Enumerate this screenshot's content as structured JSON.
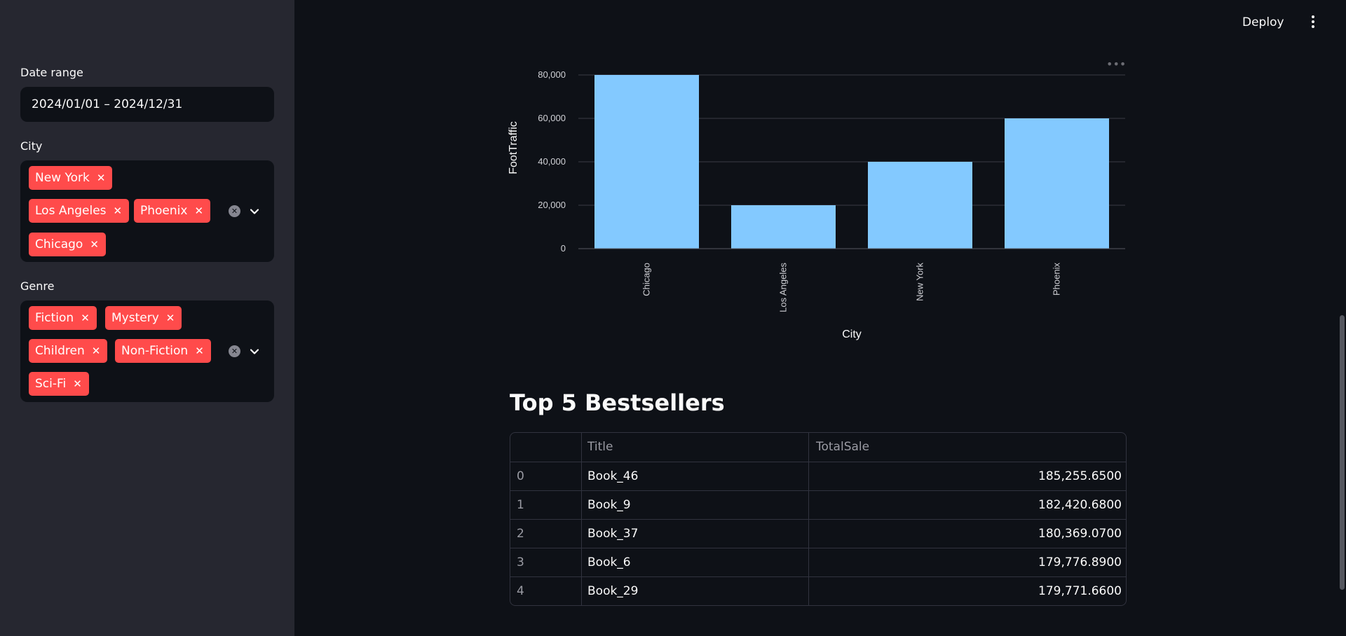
{
  "header": {
    "deploy_label": "Deploy"
  },
  "sidebar": {
    "date_range": {
      "label": "Date range",
      "value": "2024/01/01 – 2024/12/31"
    },
    "city": {
      "label": "City",
      "tags": [
        "New York",
        "Los Angeles",
        "Phoenix",
        "Chicago"
      ]
    },
    "genre": {
      "label": "Genre",
      "tags": [
        "Fiction",
        "Mystery",
        "Children",
        "Non-Fiction",
        "Sci-Fi"
      ]
    }
  },
  "chart_menu": "•••",
  "chart_data": {
    "type": "bar",
    "categories": [
      "Chicago",
      "Los Angeles",
      "New York",
      "Phoenix"
    ],
    "values": [
      80000,
      20000,
      40000,
      60000
    ],
    "xlabel": "City",
    "ylabel": "FootTraffic",
    "ylim": [
      0,
      80000
    ],
    "yticks": [
      "0",
      "20,000",
      "40,000",
      "60,000",
      "80,000"
    ],
    "bar_color": "#83c9ff",
    "grid": true
  },
  "bestsellers": {
    "title": "Top 5 Bestsellers",
    "columns": [
      "",
      "Title",
      "TotalSale"
    ],
    "rows": [
      {
        "index": "0",
        "title": "Book_46",
        "total": "185,255.6500"
      },
      {
        "index": "1",
        "title": "Book_9",
        "total": "182,420.6800"
      },
      {
        "index": "2",
        "title": "Book_37",
        "total": "180,369.0700"
      },
      {
        "index": "3",
        "title": "Book_6",
        "total": "179,776.8900"
      },
      {
        "index": "4",
        "title": "Book_29",
        "total": "179,771.6600"
      }
    ]
  }
}
